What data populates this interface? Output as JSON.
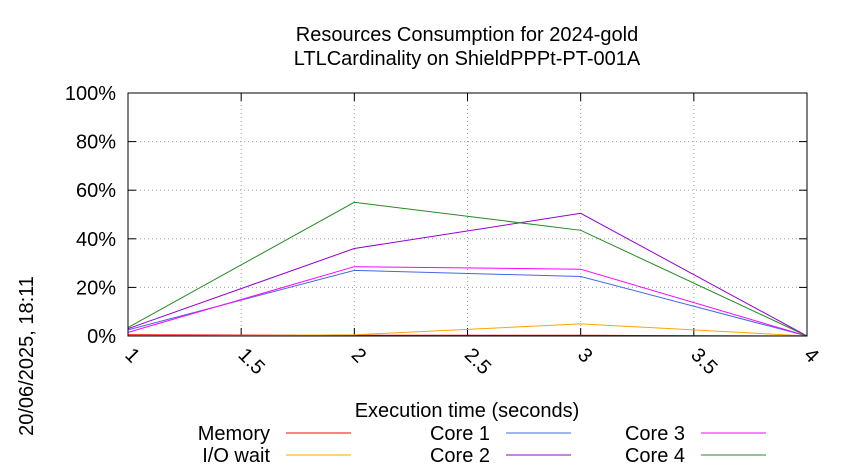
{
  "chart_data": {
    "type": "line",
    "title": "Resources Consumption for 2024-gold",
    "subtitle": "LTLCardinality on ShieldPPPt-PT-001A",
    "xlabel": "Execution time (seconds)",
    "ylabel": "",
    "timestamp": "20/06/2025, 18:11",
    "x_ticks": [
      "1",
      "1.5",
      "2",
      "2.5",
      "3",
      "3.5",
      "4"
    ],
    "y_ticks": [
      "0%",
      "20%",
      "40%",
      "60%",
      "80%",
      "100%"
    ],
    "xlim": [
      1,
      4
    ],
    "ylim": [
      0,
      100
    ],
    "grid": true,
    "legend_position": "bottom",
    "x": [
      1,
      2,
      3,
      4
    ],
    "series": [
      {
        "name": "Memory",
        "color": "#ff0000",
        "values": [
          0.5,
          0.3,
          0.3,
          0
        ]
      },
      {
        "name": "I/O wait",
        "color": "#ffa500",
        "values": [
          0,
          0.5,
          5,
          0
        ]
      },
      {
        "name": "Core 1",
        "color": "#4169e1",
        "values": [
          2.5,
          27,
          24.5,
          0
        ]
      },
      {
        "name": "Core 2",
        "color": "#9400d3",
        "values": [
          3,
          36,
          50.5,
          0
        ]
      },
      {
        "name": "Core 3",
        "color": "#ff00ff",
        "values": [
          1.5,
          28.5,
          27.5,
          0
        ]
      },
      {
        "name": "Core 4",
        "color": "#228b22",
        "values": [
          3.5,
          55,
          43.5,
          0
        ]
      }
    ]
  }
}
